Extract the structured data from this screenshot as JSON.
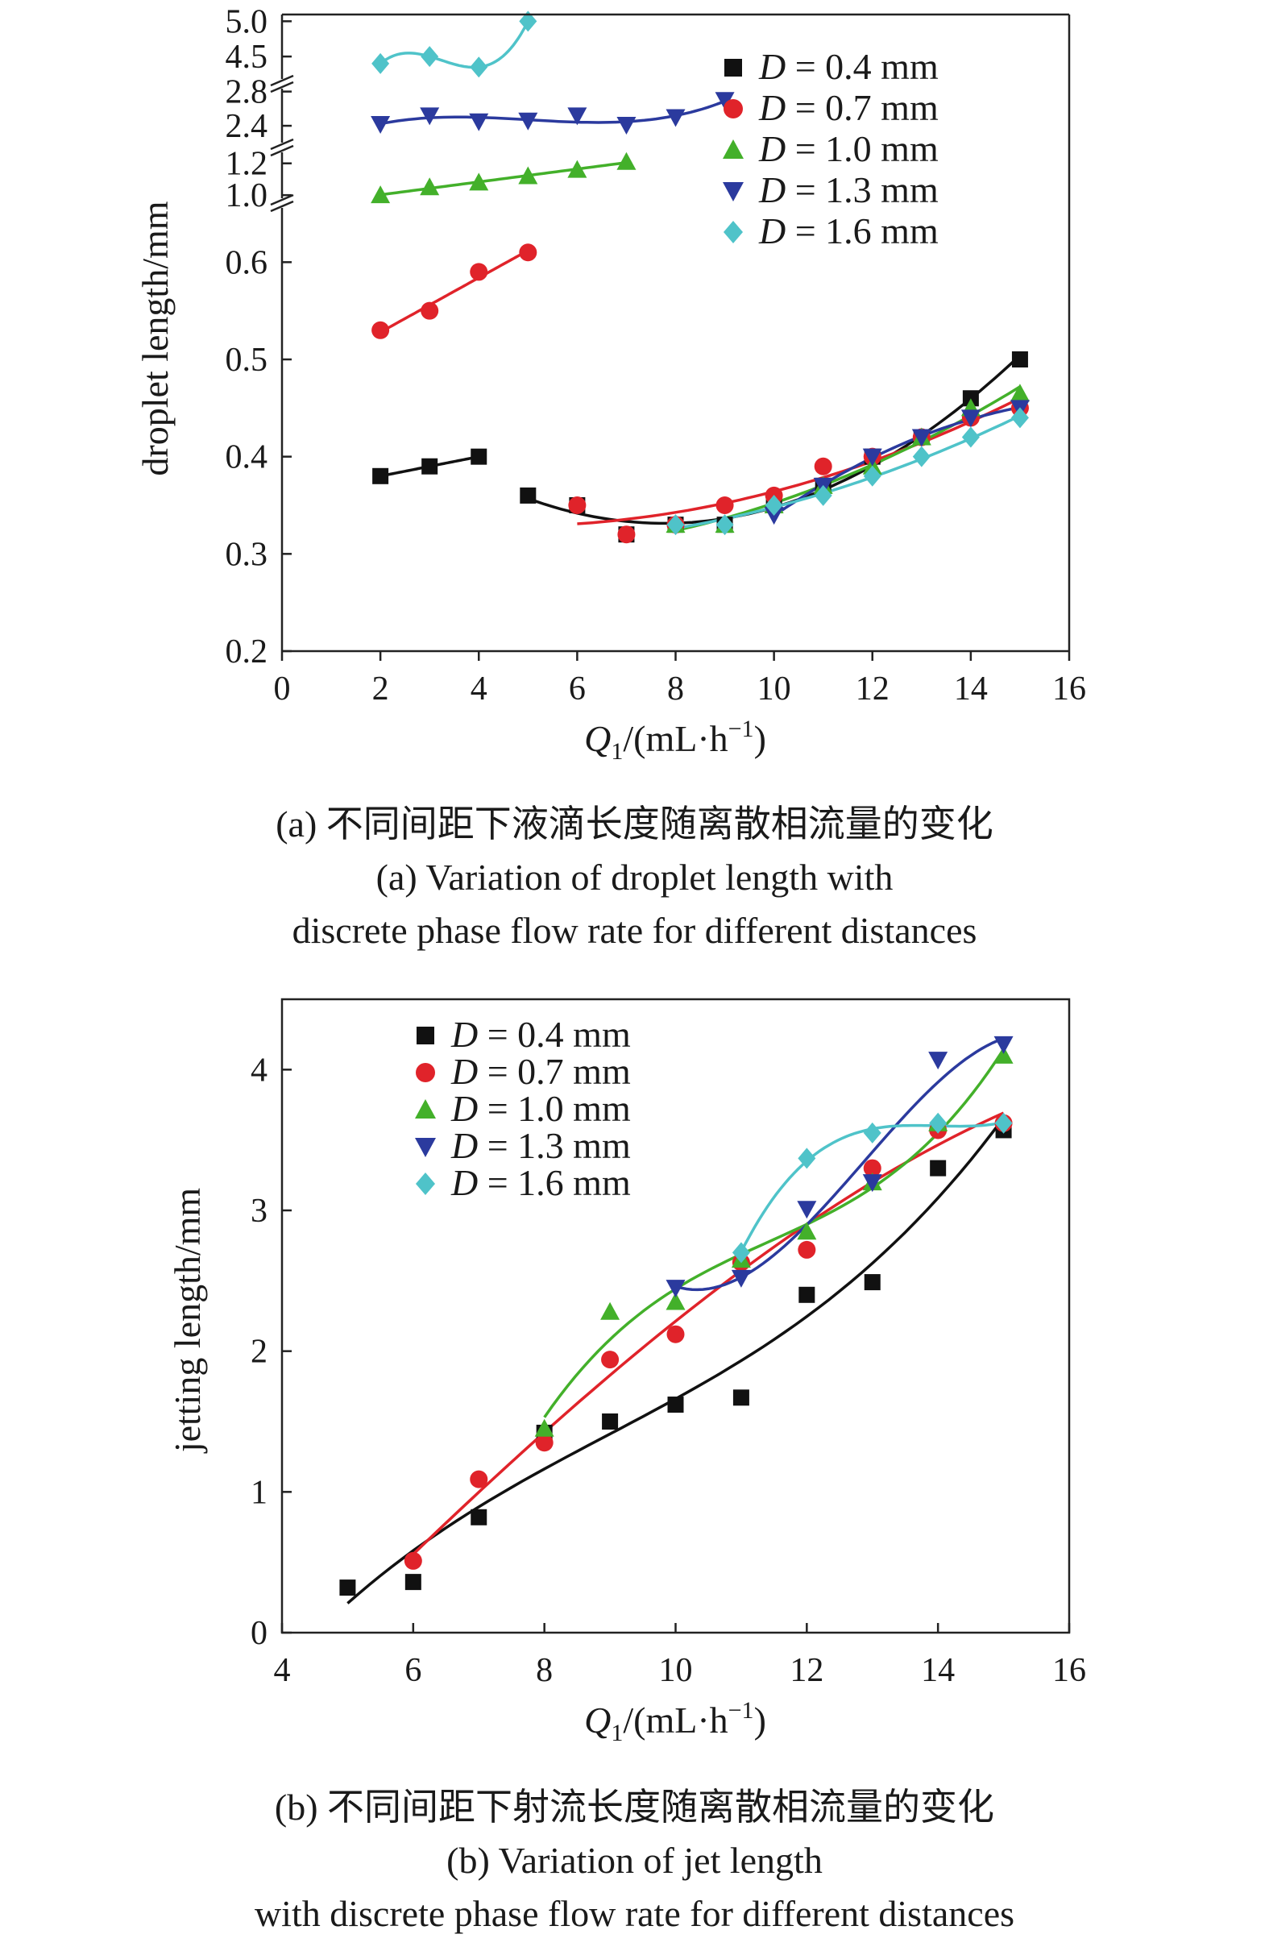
{
  "chart_data": [
    {
      "type": "scatter",
      "panel": "a",
      "ylabel": "droplet length/mm",
      "xlabel_main": "Q",
      "xlabel_sub": "1",
      "xlabel_rest": "/(mL·h",
      "xlabel_sup": "−1",
      "xlabel_end": ")",
      "xlim": [
        0,
        16
      ],
      "x_ticks": [
        0,
        2,
        4,
        6,
        8,
        10,
        12,
        14,
        16
      ],
      "y_axis": "broken",
      "y_ticks": [
        "0.2",
        "0.3",
        "0.4",
        "0.5",
        "0.6",
        "1.0",
        "1.2",
        "2.4",
        "2.8",
        "4.5",
        "5.0"
      ],
      "legend_position": "top-right",
      "series": [
        {
          "name": "D = 0.4 mm",
          "D": "D",
          "rest": " = 0.4 mm",
          "color": "#111111",
          "marker": "square",
          "x": [
            2,
            3,
            4,
            5,
            6,
            7,
            8,
            9,
            10,
            11,
            12,
            13,
            14,
            15
          ],
          "y": [
            0.38,
            0.39,
            0.4,
            0.36,
            0.35,
            0.32,
            0.33,
            0.33,
            0.35,
            0.37,
            0.4,
            0.42,
            0.46,
            0.5
          ]
        },
        {
          "name": "D = 0.7 mm",
          "D": "D",
          "rest": " = 0.7 mm",
          "color": "#e0232a",
          "marker": "circle",
          "x": [
            2,
            3,
            4,
            5,
            6,
            7,
            8,
            9,
            10,
            11,
            12,
            13,
            14,
            15
          ],
          "y": [
            0.53,
            0.55,
            0.59,
            0.61,
            0.35,
            0.32,
            0.33,
            0.35,
            0.36,
            0.39,
            0.4,
            0.42,
            0.44,
            0.45
          ]
        },
        {
          "name": "D = 1.0 mm",
          "D": "D",
          "rest": " = 1.0 mm",
          "color": "#43b02a",
          "marker": "triangle-up",
          "x": [
            2,
            3,
            4,
            5,
            6,
            7,
            8,
            9,
            10,
            11,
            12,
            13,
            14,
            15
          ],
          "y": [
            1.0,
            1.05,
            1.08,
            1.12,
            1.16,
            1.21,
            0.33,
            0.33,
            0.35,
            0.37,
            0.39,
            0.42,
            0.45,
            0.465
          ]
        },
        {
          "name": "D = 1.3 mm",
          "D": "D",
          "rest": " = 1.3 mm",
          "color": "#2b3a9e",
          "marker": "triangle-down",
          "x": [
            2,
            3,
            4,
            5,
            6,
            7,
            8,
            9,
            10,
            11,
            12,
            13,
            14,
            15
          ],
          "y": [
            2.42,
            2.52,
            2.45,
            2.46,
            2.52,
            2.41,
            2.5,
            2.7,
            0.34,
            0.37,
            0.4,
            0.42,
            0.44,
            0.45
          ]
        },
        {
          "name": "D = 1.6 mm",
          "D": "D",
          "rest": " = 1.6 mm",
          "color": "#4fc3c9",
          "marker": "diamond",
          "x": [
            2,
            3,
            4,
            5,
            8,
            9,
            10,
            11,
            12,
            13,
            14,
            15
          ],
          "y": [
            4.4,
            4.5,
            4.35,
            5.0,
            0.33,
            0.33,
            0.35,
            0.36,
            0.38,
            0.4,
            0.42,
            0.44
          ]
        }
      ]
    },
    {
      "type": "scatter",
      "panel": "b",
      "ylabel": "jetting length/mm",
      "xlabel_main": "Q",
      "xlabel_sub": "1",
      "xlabel_rest": "/(mL·h",
      "xlabel_sup": "−1",
      "xlabel_end": ")",
      "xlim": [
        4,
        16
      ],
      "ylim": [
        0,
        4.5
      ],
      "x_ticks": [
        4,
        6,
        8,
        10,
        12,
        14,
        16
      ],
      "y_ticks": [
        0,
        1,
        2,
        3,
        4
      ],
      "legend_position": "top-left",
      "series": [
        {
          "name": "D = 0.4 mm",
          "D": "D",
          "rest": " = 0.4 mm",
          "color": "#111111",
          "marker": "square",
          "x": [
            5,
            6,
            7,
            8,
            9,
            10,
            11,
            12,
            13,
            14,
            15
          ],
          "y": [
            0.32,
            0.36,
            0.82,
            1.42,
            1.5,
            1.62,
            1.67,
            2.4,
            2.49,
            3.3,
            3.57
          ]
        },
        {
          "name": "D = 0.7 mm",
          "D": "D",
          "rest": " = 0.7 mm",
          "color": "#e0232a",
          "marker": "circle",
          "x": [
            6,
            7,
            8,
            9,
            10,
            11,
            12,
            13,
            14,
            15
          ],
          "y": [
            0.51,
            1.09,
            1.35,
            1.94,
            2.12,
            2.63,
            2.72,
            3.3,
            3.57,
            3.62
          ]
        },
        {
          "name": "D = 1.0 mm",
          "D": "D",
          "rest": " = 1.0 mm",
          "color": "#43b02a",
          "marker": "triangle-up",
          "x": [
            8,
            9,
            10,
            11,
            12,
            13,
            14,
            15
          ],
          "y": [
            1.45,
            2.28,
            2.35,
            2.65,
            2.85,
            3.2,
            3.62,
            4.1
          ]
        },
        {
          "name": "D = 1.3 mm",
          "D": "D",
          "rest": " = 1.3 mm",
          "color": "#2b3a9e",
          "marker": "triangle-down",
          "x": [
            10,
            11,
            12,
            13,
            14,
            15
          ],
          "y": [
            2.45,
            2.52,
            3.01,
            3.2,
            4.07,
            4.18
          ]
        },
        {
          "name": "D = 1.6 mm",
          "D": "D",
          "rest": " = 1.6 mm",
          "color": "#4fc3c9",
          "marker": "diamond",
          "x": [
            11,
            12,
            13,
            14,
            15
          ],
          "y": [
            2.7,
            3.37,
            3.55,
            3.62,
            3.62
          ]
        }
      ]
    }
  ],
  "captions": {
    "a": {
      "line1": "(a) 不同间距下液滴长度随离散相流量的变化",
      "line2": "(a) Variation of droplet length with",
      "line3": "discrete phase flow rate for different distances"
    },
    "b": {
      "line1": "(b) 不同间距下射流长度随离散相流量的变化",
      "line2": "(b) Variation of jet length",
      "line3": "with discrete phase flow rate for different distances"
    }
  }
}
